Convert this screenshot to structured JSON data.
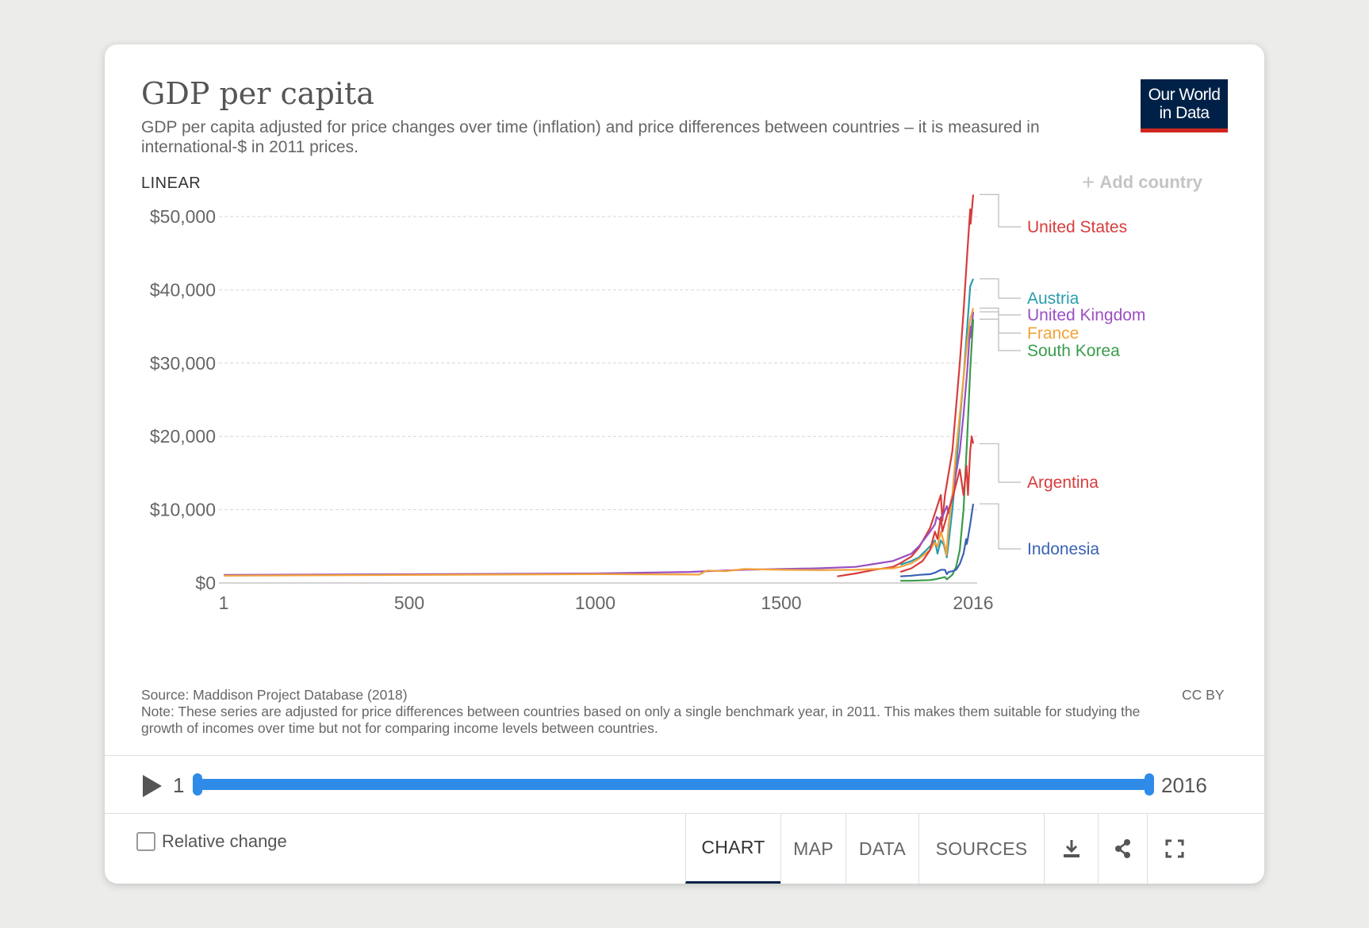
{
  "header": {
    "title": "GDP per capita",
    "subtitle": "GDP per capita adjusted for price changes over time (inflation) and price differences between countries – it is measured in international-$ in 2011 prices.",
    "logo_line1": "Our World",
    "logo_line2": "in Data"
  },
  "controls": {
    "scale": "LINEAR",
    "add_country": "Add country"
  },
  "chart_data": {
    "type": "line",
    "title": "GDP per capita",
    "ylabel": "",
    "xlabel": "",
    "ylim": [
      0,
      50000
    ],
    "xlim": [
      1,
      2016
    ],
    "y_ticks": [
      0,
      10000,
      20000,
      30000,
      40000,
      50000
    ],
    "y_tick_labels": [
      "$0",
      "$10,000",
      "$20,000",
      "$30,000",
      "$40,000",
      "$50,000"
    ],
    "x_ticks": [
      1,
      500,
      1000,
      1500,
      2016
    ],
    "x_tick_labels": [
      "1",
      "500",
      "1000",
      "1500",
      "2016"
    ],
    "grid": "horizontal dashed",
    "legend": "right, inline labels",
    "series": [
      {
        "name": "United States",
        "color": "#d73c3c",
        "x": [
          1650,
          1700,
          1750,
          1800,
          1820,
          1850,
          1870,
          1900,
          1913,
          1929,
          1933,
          1940,
          1950,
          1960,
          1970,
          1980,
          1990,
          2000,
          2008,
          2009,
          2016
        ],
        "y": [
          900,
          1300,
          1800,
          2200,
          2700,
          3600,
          4800,
          7500,
          9500,
          12000,
          8500,
          12000,
          15000,
          18000,
          24000,
          30000,
          37000,
          45000,
          51000,
          49000,
          53000
        ]
      },
      {
        "name": "Austria",
        "color": "#2a9cad",
        "x": [
          1820,
          1850,
          1870,
          1900,
          1913,
          1920,
          1929,
          1937,
          1945,
          1950,
          1960,
          1970,
          1980,
          1990,
          2000,
          2008,
          2016
        ],
        "y": [
          2500,
          3000,
          3500,
          5000,
          5800,
          4000,
          5800,
          5200,
          3500,
          5500,
          10000,
          15500,
          22000,
          28000,
          35000,
          40500,
          41500
        ]
      },
      {
        "name": "United Kingdom",
        "color": "#9a4fc2",
        "x": [
          1,
          1000,
          1252,
          1300,
          1400,
          1500,
          1600,
          1700,
          1750,
          1800,
          1850,
          1870,
          1900,
          1913,
          1918,
          1929,
          1945,
          1950,
          1960,
          1970,
          1980,
          1990,
          2000,
          2008,
          2009,
          2016
        ],
        "y": [
          1100,
          1300,
          1500,
          1600,
          1800,
          1900,
          2000,
          2200,
          2600,
          3000,
          4000,
          5000,
          7000,
          8000,
          9000,
          8500,
          10500,
          9500,
          12000,
          15000,
          18000,
          23000,
          29000,
          35000,
          33500,
          37000
        ]
      },
      {
        "name": "France",
        "color": "#f2a33a",
        "x": [
          1,
          1000,
          1280,
          1300,
          1350,
          1400,
          1500,
          1600,
          1700,
          1800,
          1820,
          1850,
          1870,
          1900,
          1913,
          1920,
          1929,
          1940,
          1944,
          1950,
          1960,
          1970,
          1980,
          1990,
          2000,
          2008,
          2016
        ],
        "y": [
          1000,
          1200,
          1150,
          1700,
          1600,
          1900,
          1800,
          1750,
          1800,
          2000,
          2200,
          2700,
          3300,
          4500,
          5500,
          5000,
          7000,
          5000,
          3800,
          8000,
          12000,
          18000,
          23000,
          28000,
          33000,
          36000,
          37500
        ]
      },
      {
        "name": "South Korea",
        "color": "#3a9c4b",
        "x": [
          1820,
          1850,
          1900,
          1913,
          1940,
          1945,
          1950,
          1960,
          1970,
          1980,
          1990,
          2000,
          2008,
          2016
        ],
        "y": [
          300,
          300,
          400,
          500,
          800,
          500,
          700,
          1100,
          2200,
          4500,
          10000,
          20000,
          29000,
          36000
        ]
      },
      {
        "name": "Argentina",
        "color": "#d73c3c",
        "x": [
          1820,
          1850,
          1880,
          1900,
          1913,
          1920,
          1929,
          1933,
          1950,
          1960,
          1970,
          1980,
          1990,
          1998,
          2002,
          2008,
          2012,
          2016
        ],
        "y": [
          1500,
          2000,
          3000,
          4500,
          7000,
          6000,
          9000,
          7000,
          10000,
          11500,
          13500,
          15500,
          12000,
          16000,
          12000,
          18000,
          20000,
          19000
        ]
      },
      {
        "name": "Indonesia",
        "color": "#3b62b5",
        "x": [
          1820,
          1850,
          1870,
          1900,
          1913,
          1929,
          1940,
          1945,
          1950,
          1960,
          1970,
          1980,
          1990,
          1997,
          1998,
          2000,
          2008,
          2016
        ],
        "y": [
          900,
          1000,
          1100,
          1200,
          1400,
          1800,
          1800,
          1200,
          1500,
          1600,
          1800,
          2600,
          4000,
          6000,
          5300,
          5600,
          8000,
          10800
        ]
      }
    ]
  },
  "footer": {
    "source": "Source: Maddison Project Database (2018)",
    "note": "Note: These series are adjusted for price differences between countries based on only a single benchmark year, in 2011. This makes them suitable for studying the growth of incomes over time but not for comparing income levels between countries.",
    "license": "CC BY"
  },
  "timeline": {
    "start": "1",
    "end": "2016"
  },
  "bottom_bar": {
    "relative_change": "Relative change",
    "relative_change_checked": false,
    "tabs": [
      {
        "label": "CHART",
        "active": true
      },
      {
        "label": "MAP",
        "active": false
      },
      {
        "label": "DATA",
        "active": false
      },
      {
        "label": "SOURCES",
        "active": false
      }
    ],
    "icons": [
      "download-icon",
      "share-icon",
      "fullscreen-icon"
    ]
  }
}
